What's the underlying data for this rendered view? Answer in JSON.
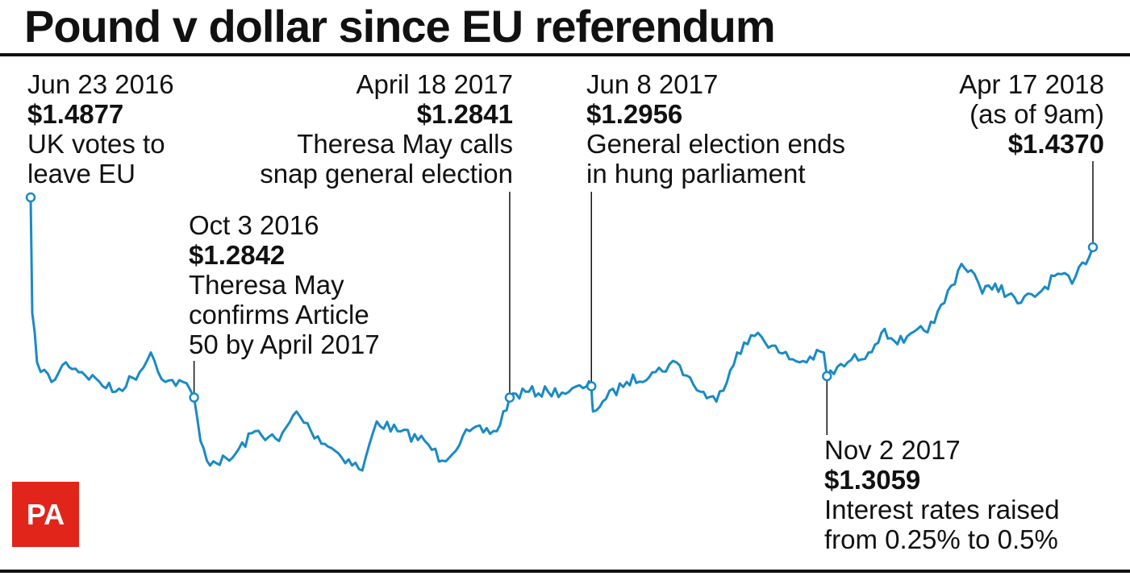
{
  "title": "Pound v dollar since EU referendum",
  "brand": {
    "logo_text": "PA",
    "logo_color": "#e1251b"
  },
  "colors": {
    "line": "#1a8ac4",
    "text": "#111111"
  },
  "chart_data": {
    "type": "line",
    "title": "Pound v dollar since EU referendum",
    "xlabel": "",
    "ylabel": "",
    "grid": false,
    "y_unit": "$",
    "series": [
      {
        "x": [
          "2016-06-23",
          "2016-06-24",
          "2016-06-27",
          "2016-07-06",
          "2016-07-15",
          "2016-07-25",
          "2016-08-05",
          "2016-08-15",
          "2016-08-30",
          "2016-09-06",
          "2016-09-15",
          "2016-09-26",
          "2016-10-03",
          "2016-10-07",
          "2016-10-11",
          "2016-10-25",
          "2016-11-10",
          "2016-11-25",
          "2016-12-06",
          "2016-12-15",
          "2016-12-30",
          "2017-01-16",
          "2017-01-25",
          "2017-02-07",
          "2017-02-24",
          "2017-03-07",
          "2017-03-24",
          "2017-04-10",
          "2017-04-18",
          "2017-04-28",
          "2017-05-12",
          "2017-05-25",
          "2017-06-05",
          "2017-06-08",
          "2017-06-09",
          "2017-06-15",
          "2017-06-30",
          "2017-07-18",
          "2017-07-31",
          "2017-08-15",
          "2017-08-25",
          "2017-09-07",
          "2017-09-20",
          "2017-10-03",
          "2017-10-16",
          "2017-10-31",
          "2017-11-02",
          "2017-11-15",
          "2017-11-28",
          "2017-12-06",
          "2017-12-20",
          "2018-01-08",
          "2018-01-25",
          "2018-02-02",
          "2018-02-07",
          "2018-02-15",
          "2018-03-01",
          "2018-03-14",
          "2018-03-26",
          "2018-04-04",
          "2018-04-17"
        ],
        "y": [
          1.4877,
          1.37,
          1.32,
          1.3,
          1.32,
          1.31,
          1.3,
          1.29,
          1.31,
          1.33,
          1.3,
          1.3,
          1.2842,
          1.24,
          1.22,
          1.22,
          1.25,
          1.24,
          1.27,
          1.25,
          1.23,
          1.21,
          1.26,
          1.25,
          1.24,
          1.22,
          1.25,
          1.25,
          1.2841,
          1.29,
          1.29,
          1.29,
          1.2956,
          1.2956,
          1.27,
          1.28,
          1.3,
          1.31,
          1.32,
          1.29,
          1.28,
          1.33,
          1.35,
          1.33,
          1.32,
          1.33,
          1.3059,
          1.32,
          1.33,
          1.35,
          1.34,
          1.36,
          1.42,
          1.41,
          1.39,
          1.4,
          1.38,
          1.39,
          1.41,
          1.4,
          1.437
        ]
      }
    ],
    "annotations": [
      {
        "date": "Jun 23 2016",
        "value": "$1.4877",
        "text": [
          "UK votes to",
          "leave EU"
        ]
      },
      {
        "date": "Oct 3 2016",
        "value": "$1.2842",
        "text": [
          "Theresa May",
          "confirms Article",
          "50 by April 2017"
        ]
      },
      {
        "date": "April 18 2017",
        "value": "$1.2841",
        "text": [
          "Theresa May calls",
          "snap general election"
        ]
      },
      {
        "date": "Jun 8 2017",
        "value": "$1.2956",
        "text": [
          "General election ends",
          "in hung parliament"
        ]
      },
      {
        "date": "Nov 2 2017",
        "value": "$1.3059",
        "text": [
          "Interest rates raised",
          "from 0.25% to 0.5%"
        ]
      },
      {
        "date": "Apr 17 2018",
        "note": "(as of 9am)",
        "value": "$1.4370"
      }
    ]
  }
}
